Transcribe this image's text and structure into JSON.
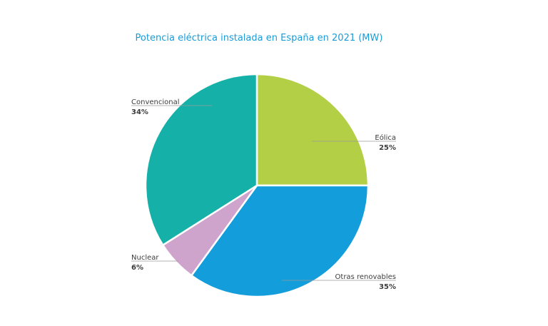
{
  "chart_data": {
    "type": "pie",
    "title": "Potencia eléctrica instalada en España en 2021 (MW)",
    "slices": [
      {
        "label": "Eólica",
        "value": 25,
        "display": "25%",
        "color": "#b2cf45"
      },
      {
        "label": "Otras renovables",
        "value": 35,
        "display": "35%",
        "color": "#139ddb"
      },
      {
        "label": "Nuclear",
        "value": 6,
        "display": "6%",
        "color": "#cfa4cc"
      },
      {
        "label": "Convencional",
        "value": 34,
        "display": "34%",
        "color": "#15b1a9"
      }
    ]
  }
}
